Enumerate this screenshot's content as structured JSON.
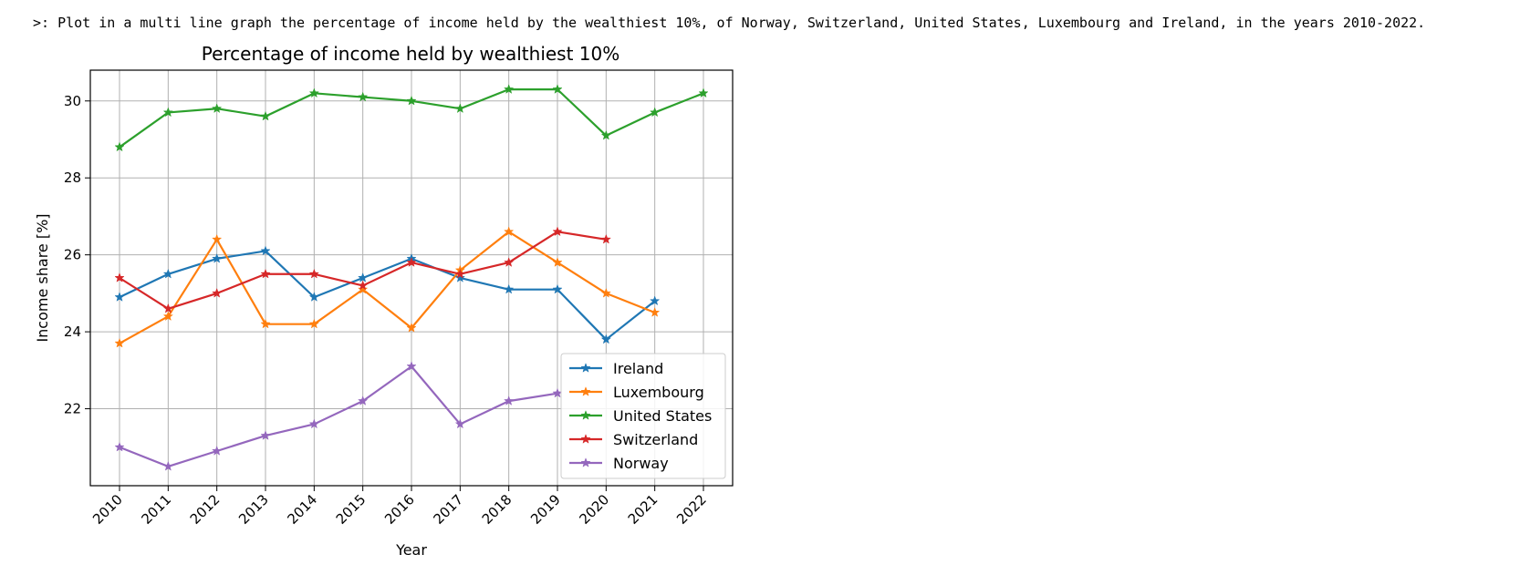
{
  "prompt": {
    "marker": ">:",
    "text": "Plot in a multi line graph the percentage of income held by the wealthiest 10%, of Norway, Switzerland, United States, Luxembourg and Ireland, in the years 2010-2022."
  },
  "chart_data": {
    "type": "line",
    "title": "Percentage of income held by wealthiest 10%",
    "xlabel": "Year",
    "ylabel": "Income share [%]",
    "x": [
      2010,
      2011,
      2012,
      2013,
      2014,
      2015,
      2016,
      2017,
      2018,
      2019,
      2020,
      2021,
      2022
    ],
    "xlim": [
      2009.4,
      2022.6
    ],
    "ylim": [
      20.0,
      30.8
    ],
    "yticks": [
      22,
      24,
      26,
      28,
      30
    ],
    "grid": true,
    "legend_position": "lower-right",
    "marker": "star",
    "series": [
      {
        "name": "Ireland",
        "color": "#1f77b4",
        "values": [
          24.9,
          25.5,
          25.9,
          26.1,
          24.9,
          25.4,
          25.9,
          25.4,
          25.1,
          25.1,
          23.8,
          24.8,
          null
        ]
      },
      {
        "name": "Luxembourg",
        "color": "#ff7f0e",
        "values": [
          23.7,
          24.4,
          26.4,
          24.2,
          24.2,
          25.1,
          24.1,
          25.6,
          26.6,
          25.8,
          25.0,
          24.5,
          null
        ]
      },
      {
        "name": "United States",
        "color": "#2ca02c",
        "values": [
          28.8,
          29.7,
          29.8,
          29.6,
          30.2,
          30.1,
          30.0,
          29.8,
          30.3,
          30.3,
          29.1,
          29.7,
          30.2
        ]
      },
      {
        "name": "Switzerland",
        "color": "#d62728",
        "values": [
          25.4,
          24.6,
          25.0,
          25.5,
          25.5,
          25.2,
          25.8,
          25.5,
          25.8,
          26.6,
          26.4,
          null,
          null
        ]
      },
      {
        "name": "Norway",
        "color": "#9467bd",
        "values": [
          21.0,
          20.5,
          20.9,
          21.3,
          21.6,
          22.2,
          23.1,
          21.6,
          22.2,
          22.4,
          null,
          null,
          null
        ]
      }
    ]
  }
}
